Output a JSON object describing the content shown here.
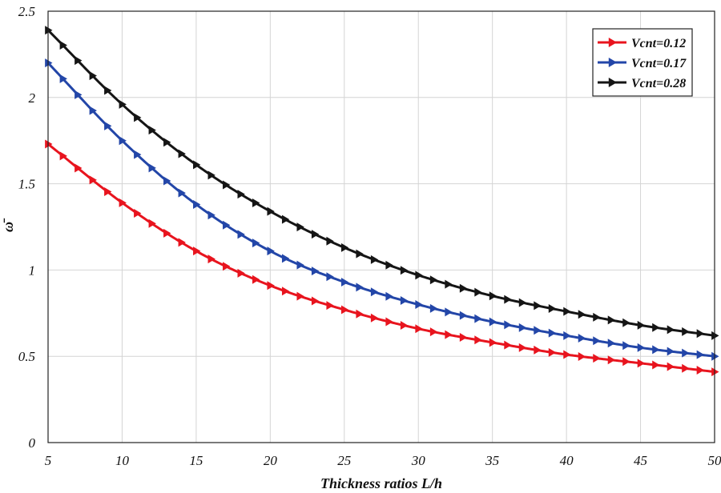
{
  "chart_data": {
    "type": "line",
    "xlabel": "Thickness ratios L/h",
    "ylabel": "ω̄",
    "xlim": [
      5,
      50
    ],
    "ylim": [
      0,
      2.5
    ],
    "xticks": [
      "5",
      "10",
      "15",
      "20",
      "25",
      "30",
      "35",
      "40",
      "45",
      "50"
    ],
    "yticks": [
      "0",
      "0.5",
      "1",
      "1.5",
      "2",
      "2.5"
    ],
    "grid": true,
    "legend_position": "top-right",
    "x": [
      5,
      10,
      15,
      20,
      25,
      30,
      35,
      40,
      45,
      50
    ],
    "series": [
      {
        "name": "Vcnt=0.12",
        "color": "#e8141e",
        "values": [
          1.73,
          1.39,
          1.11,
          0.91,
          0.77,
          0.66,
          0.58,
          0.51,
          0.46,
          0.41
        ]
      },
      {
        "name": "Vcnt=0.17",
        "color": "#2346a8",
        "values": [
          2.2,
          1.75,
          1.38,
          1.11,
          0.93,
          0.8,
          0.7,
          0.62,
          0.55,
          0.5
        ]
      },
      {
        "name": "Vcnt=0.28",
        "color": "#151515",
        "values": [
          2.39,
          1.96,
          1.61,
          1.34,
          1.13,
          0.97,
          0.85,
          0.76,
          0.68,
          0.62
        ]
      }
    ]
  }
}
